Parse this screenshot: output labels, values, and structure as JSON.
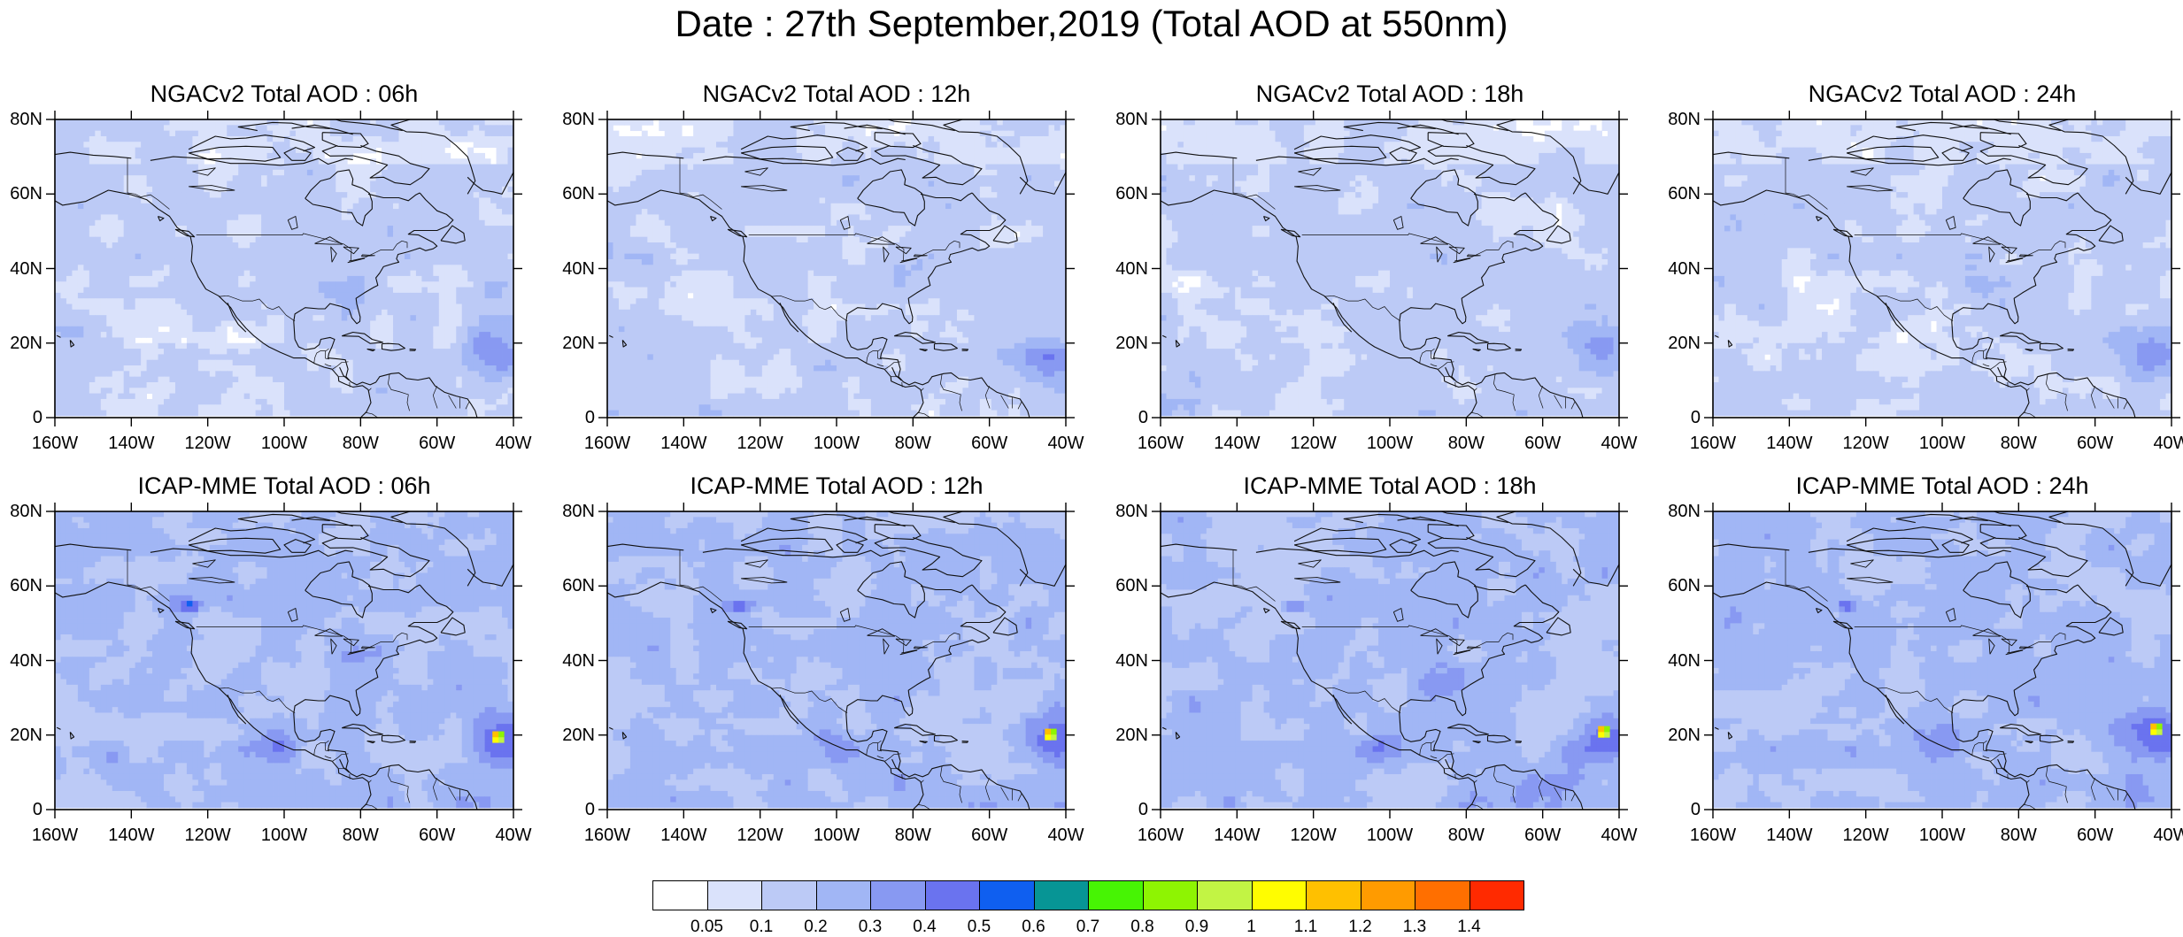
{
  "title": "Date : 27th September,2019 (Total AOD at 550nm)",
  "panels": [
    {
      "title": "NGACv2 Total AOD : 06h",
      "model": "NGACv2",
      "hour": "06h"
    },
    {
      "title": "NGACv2 Total AOD : 12h",
      "model": "NGACv2",
      "hour": "12h"
    },
    {
      "title": "NGACv2 Total AOD : 18h",
      "model": "NGACv2",
      "hour": "18h"
    },
    {
      "title": "NGACv2 Total AOD : 24h",
      "model": "NGACv2",
      "hour": "24h"
    },
    {
      "title": "ICAP-MME Total AOD : 06h",
      "model": "ICAP-MME",
      "hour": "06h"
    },
    {
      "title": "ICAP-MME Total AOD : 12h",
      "model": "ICAP-MME",
      "hour": "12h"
    },
    {
      "title": "ICAP-MME Total AOD : 18h",
      "model": "ICAP-MME",
      "hour": "18h"
    },
    {
      "title": "ICAP-MME Total AOD : 24h",
      "model": "ICAP-MME",
      "hour": "24h"
    }
  ],
  "lat_ticks": [
    "80N",
    "60N",
    "40N",
    "20N",
    "0"
  ],
  "lon_ticks": [
    "160W",
    "140W",
    "120W",
    "100W",
    "80W",
    "60W",
    "40W"
  ],
  "colorbar": {
    "labels": [
      "0.05",
      "0.1",
      "0.2",
      "0.3",
      "0.4",
      "0.5",
      "0.6",
      "0.7",
      "0.8",
      "0.9",
      "1",
      "1.1",
      "1.2",
      "1.3",
      "1.4"
    ],
    "colors": [
      "#ffffff",
      "#dae2fb",
      "#bccaf6",
      "#a1b6f5",
      "#8899f2",
      "#6a73ef",
      "#0f5ff0",
      "#079595",
      "#47f404",
      "#8ef402",
      "#c2f444",
      "#fffd00",
      "#ffc000",
      "#ff9b00",
      "#ff6f00",
      "#ff2a00"
    ]
  },
  "chart_data": {
    "type": "heatmap",
    "map_extent": {
      "lon": [
        -160,
        -40
      ],
      "lat": [
        0,
        80
      ]
    },
    "variable": "Total AOD at 550nm",
    "levels": [
      0.05,
      0.1,
      0.2,
      0.3,
      0.4,
      0.5,
      0.6,
      0.7,
      0.8,
      0.9,
      1,
      1.1,
      1.2,
      1.3,
      1.4
    ],
    "panels": [
      {
        "model": "NGACv2",
        "hour": "06h",
        "background_range": [
          0.05,
          0.2
        ],
        "max_region": "Tropical Atlantic near 45W 18N",
        "max_value": 0.4
      },
      {
        "model": "NGACv2",
        "hour": "12h",
        "background_range": [
          0.05,
          0.2
        ],
        "max_region": "Tropical Atlantic near 45W 18N",
        "max_value": 0.3
      },
      {
        "model": "NGACv2",
        "hour": "18h",
        "background_range": [
          0.05,
          0.2
        ],
        "max_region": "Tropical Atlantic near 45W 18N",
        "max_value": 0.4
      },
      {
        "model": "NGACv2",
        "hour": "24h",
        "background_range": [
          0.05,
          0.2
        ],
        "max_region": "Tropical Atlantic near 45W 18N",
        "max_value": 0.4
      },
      {
        "model": "ICAP-MME",
        "hour": "06h",
        "background_range": [
          0.1,
          0.3
        ],
        "max_region": "Tropical Atlantic near 42W 18N",
        "max_value": 1.1
      },
      {
        "model": "ICAP-MME",
        "hour": "12h",
        "background_range": [
          0.1,
          0.3
        ],
        "max_region": "Tropical Atlantic near 44W 19N",
        "max_value": 1.1
      },
      {
        "model": "ICAP-MME",
        "hour": "18h",
        "background_range": [
          0.1,
          0.3
        ],
        "max_region": "Tropical Atlantic near 44W 20N",
        "max_value": 1.1
      },
      {
        "model": "ICAP-MME",
        "hour": "24h",
        "background_range": [
          0.1,
          0.3
        ],
        "max_region": "Tropical Atlantic near 45W 20N",
        "max_value": 1.1
      }
    ]
  }
}
